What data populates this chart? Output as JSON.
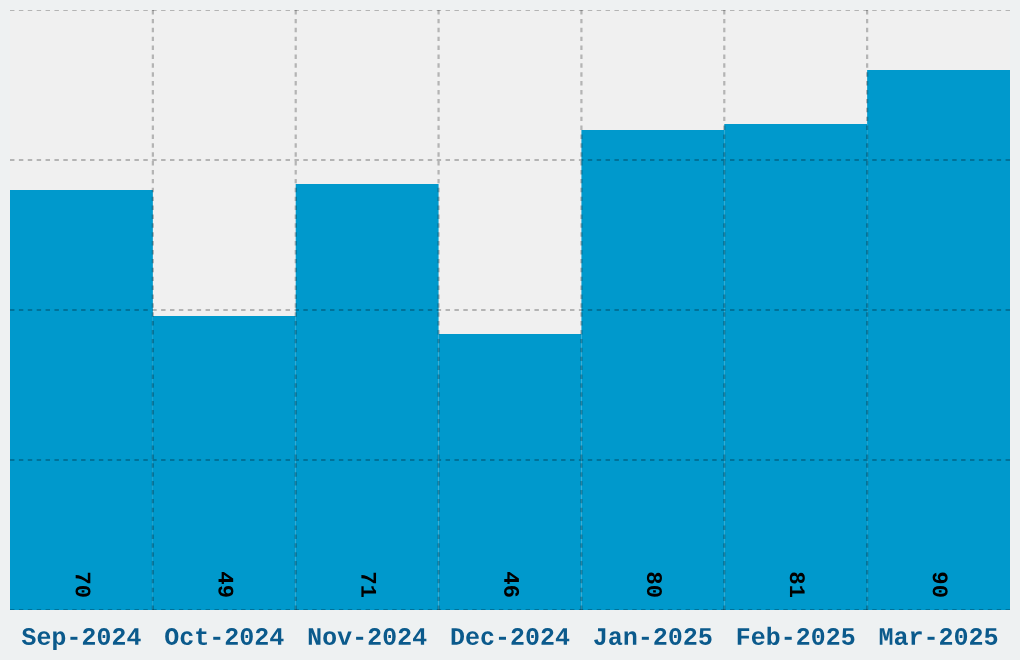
{
  "chart_data": {
    "type": "bar",
    "categories": [
      "Sep-2024",
      "Oct-2024",
      "Nov-2024",
      "Dec-2024",
      "Jan-2025",
      "Feb-2025",
      "Mar-2025"
    ],
    "values": [
      70,
      49,
      71,
      46,
      80,
      81,
      90
    ],
    "color": "#0099cc",
    "ylim": [
      0,
      100
    ],
    "yticks": [
      0,
      25,
      50,
      75,
      100
    ],
    "tick_labels": "x",
    "grid": true,
    "data_labels": true
  }
}
